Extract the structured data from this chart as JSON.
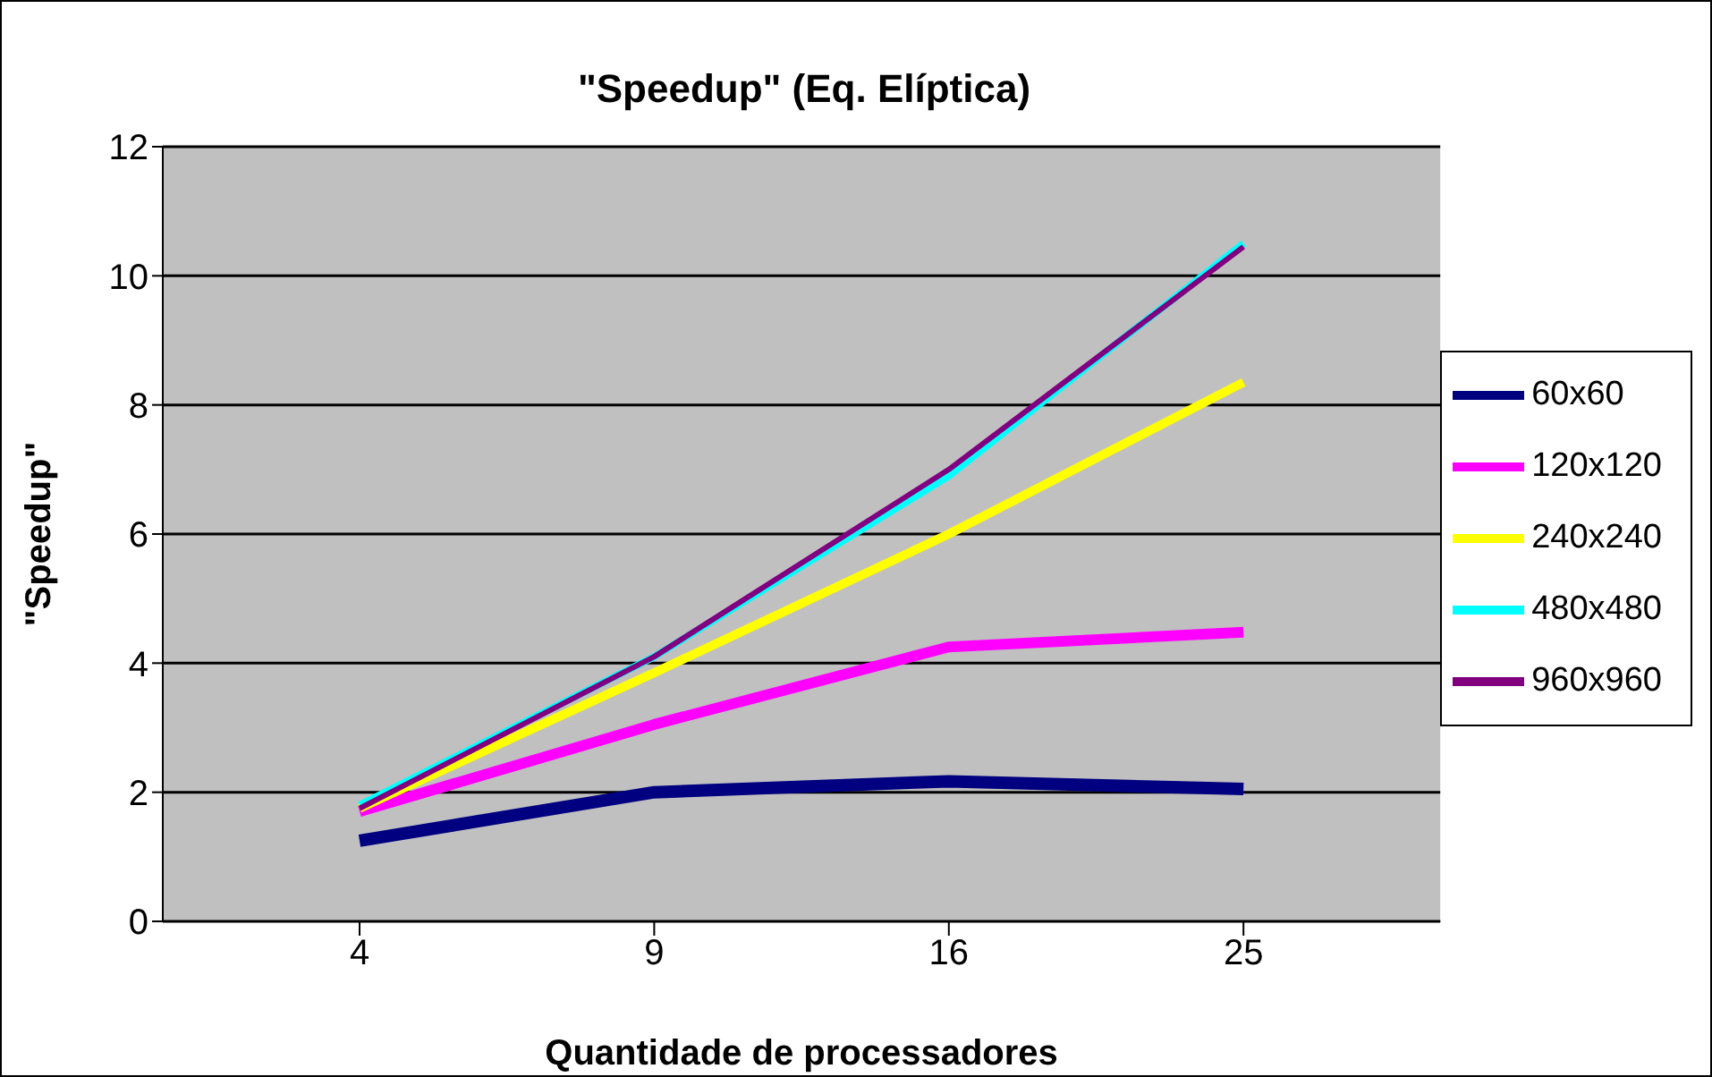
{
  "chart_data": {
    "type": "line",
    "title": "\"Speedup\" (Eq. Elíptica)",
    "xlabel": "Quantidade de processadores",
    "ylabel": "\"Speedup\"",
    "categories": [
      "4",
      "9",
      "16",
      "25"
    ],
    "series": [
      {
        "name": "60x60",
        "color": "#000080",
        "values": [
          1.25,
          2.0,
          2.17,
          2.05
        ]
      },
      {
        "name": "120x120",
        "color": "#ff00ff",
        "values": [
          1.7,
          3.05,
          4.25,
          4.48
        ]
      },
      {
        "name": "240x240",
        "color": "#ffff00",
        "values": [
          1.75,
          3.85,
          6.0,
          8.35
        ]
      },
      {
        "name": "480x480",
        "color": "#00ffff",
        "values": [
          1.8,
          4.1,
          6.9,
          10.5
        ]
      },
      {
        "name": "960x960",
        "color": "#800080",
        "values": [
          1.75,
          4.1,
          7.0,
          10.45
        ]
      }
    ],
    "ylim": [
      0,
      12
    ],
    "yticks": [
      0,
      2,
      4,
      6,
      8,
      10,
      12
    ],
    "grid": "y",
    "legend": "right",
    "marker": "none",
    "line_style": "solid"
  }
}
